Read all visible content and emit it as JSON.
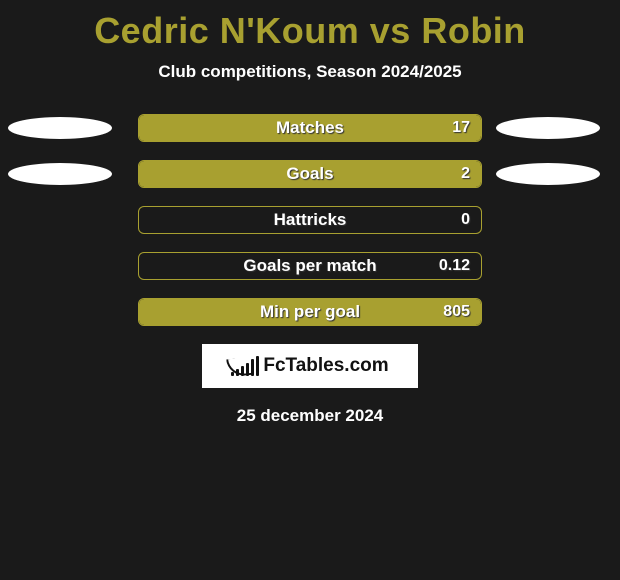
{
  "title": "Cedric N'Koum vs Robin",
  "subtitle": "Club competitions, Season 2024/2025",
  "footer_date": "25 december 2024",
  "logo_text": "FcTables.com",
  "style": {
    "background_color": "#1a1a1a",
    "title_color": "#a8a030",
    "text_color": "#ffffff",
    "bar_border_color": "#a8a030",
    "bar_fill_color": "#a8a030",
    "ellipse_color": "#ffffff",
    "text_shadow_color": "#333333",
    "logo_bg": "#ffffff",
    "logo_fg": "#111111",
    "title_fontsize": 36,
    "subtitle_fontsize": 17,
    "label_fontsize": 17,
    "value_fontsize": 16,
    "bar_track_width": 344,
    "bar_track_height": 28,
    "row_gap": 18
  },
  "logo_bar_heights": [
    4,
    7,
    10,
    13,
    17,
    20
  ],
  "stats": [
    {
      "label": "Matches",
      "value": "17",
      "fill_pct": 100,
      "left_ellipse": true,
      "right_ellipse": true
    },
    {
      "label": "Goals",
      "value": "2",
      "fill_pct": 100,
      "left_ellipse": true,
      "right_ellipse": true
    },
    {
      "label": "Hattricks",
      "value": "0",
      "fill_pct": 0,
      "left_ellipse": false,
      "right_ellipse": false
    },
    {
      "label": "Goals per match",
      "value": "0.12",
      "fill_pct": 0,
      "left_ellipse": false,
      "right_ellipse": false
    },
    {
      "label": "Min per goal",
      "value": "805",
      "fill_pct": 100,
      "left_ellipse": false,
      "right_ellipse": false
    }
  ]
}
